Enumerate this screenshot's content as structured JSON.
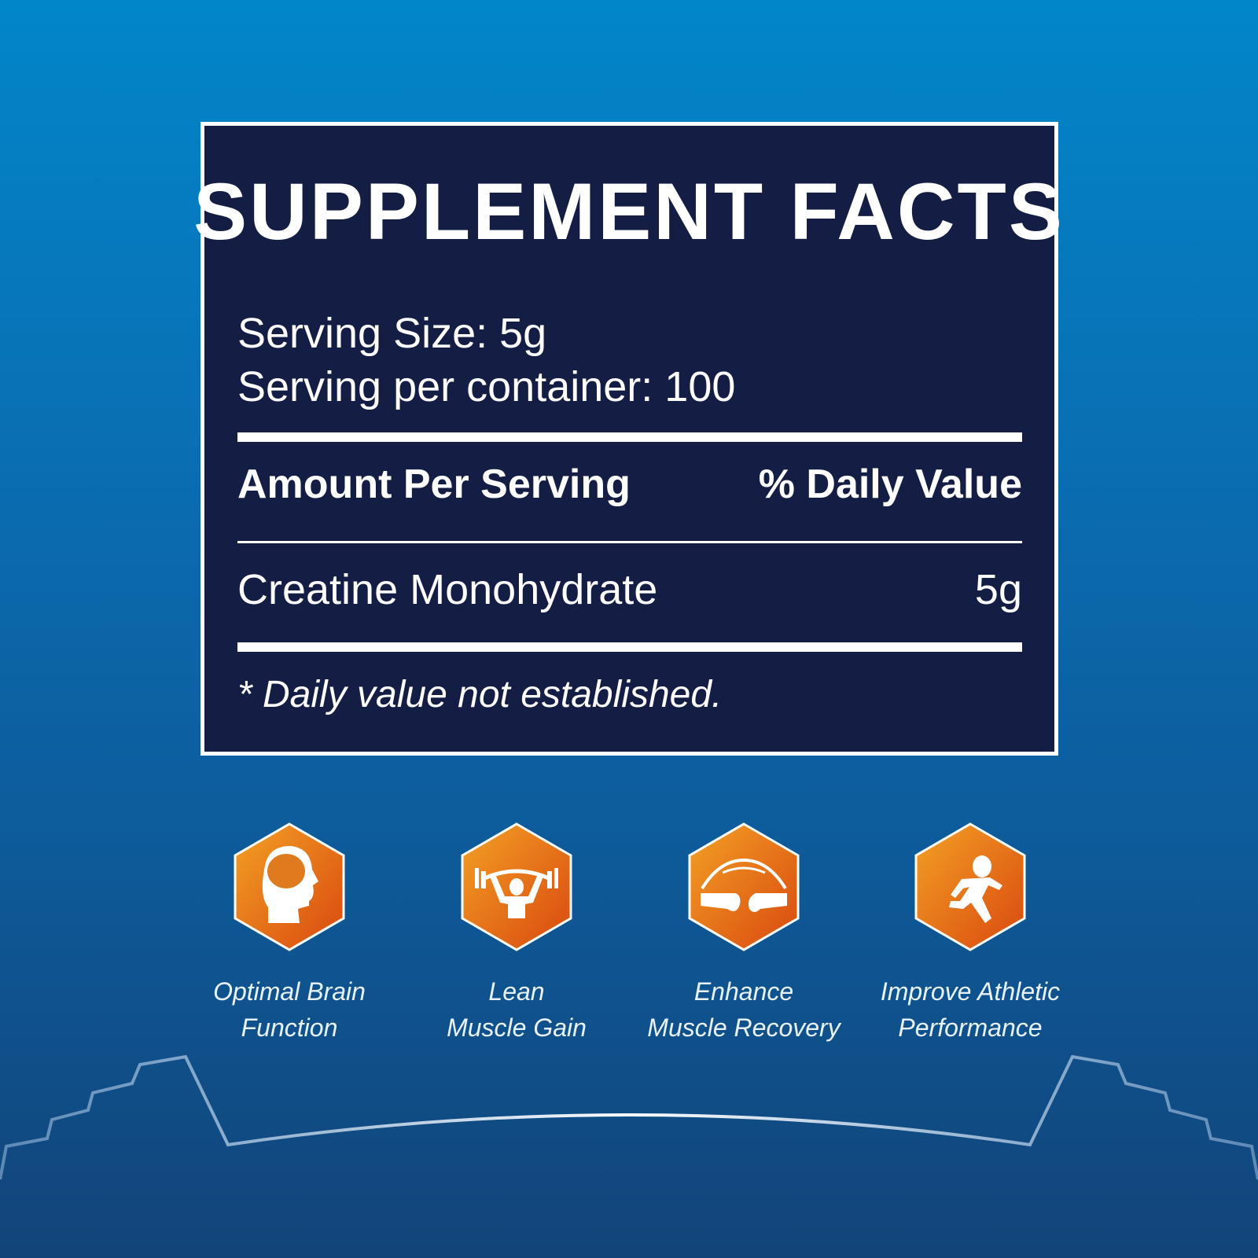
{
  "title": "SUPPLEMENT FACTS",
  "serving_size": "Serving Size: 5g",
  "servings_per_container": "Serving per container: 100",
  "table_header": {
    "amount": "Amount Per Serving",
    "daily_value": "% Daily Value"
  },
  "ingredients": [
    {
      "name": "Creatine Monohydrate",
      "amount": "5g"
    }
  ],
  "footnote": "* Daily value not established.",
  "benefits": [
    {
      "icon": "brain-head-icon",
      "line1": "Optimal Brain",
      "line2": "Function"
    },
    {
      "icon": "weightlifter-icon",
      "line1": "Lean",
      "line2": "Muscle Gain"
    },
    {
      "icon": "joint-icon",
      "line1": "Enhance",
      "line2": "Muscle Recovery"
    },
    {
      "icon": "runner-icon",
      "line1": "Improve Athletic",
      "line2": "Performance"
    }
  ],
  "colors": {
    "panel": "#141e44",
    "accent_orange": "#e8721c",
    "background_top": "#0286ca",
    "background_bottom": "#124479"
  }
}
